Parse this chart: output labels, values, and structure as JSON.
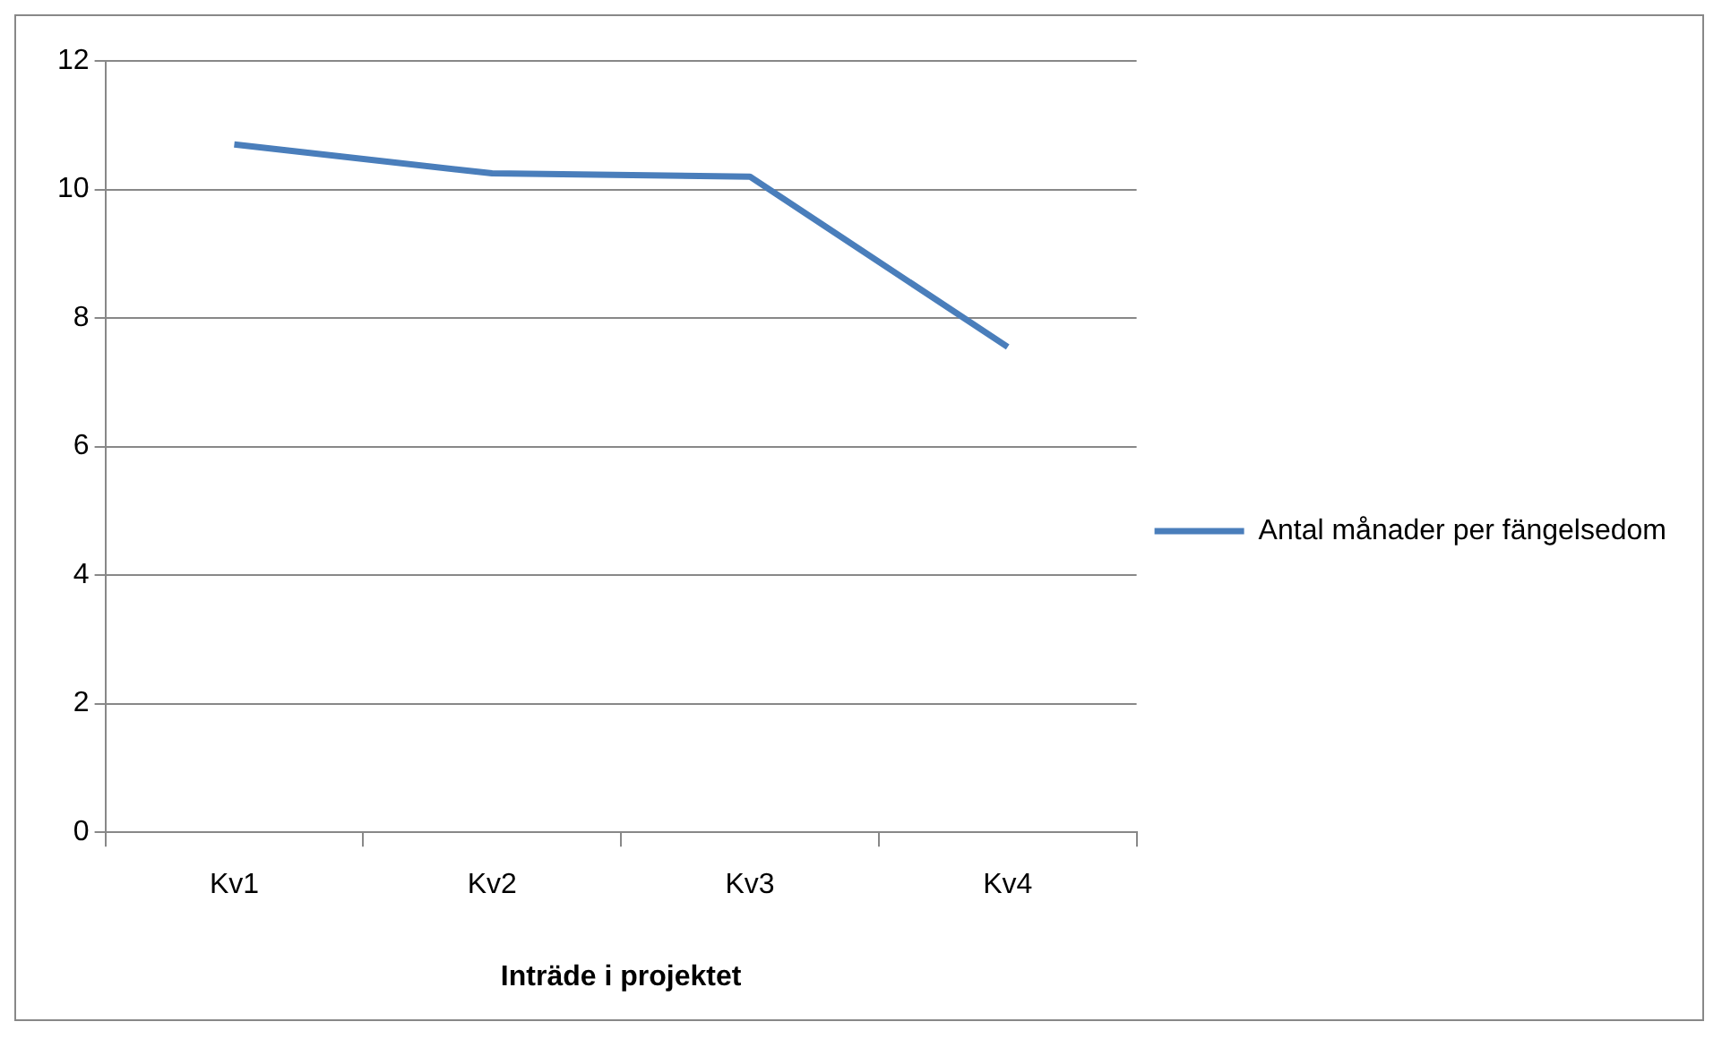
{
  "chart_data": {
    "type": "line",
    "xlabel": "Inträde i projektet",
    "categories": [
      "Kv1",
      "Kv2",
      "Kv3",
      "Kv4"
    ],
    "series": [
      {
        "name": "Antal månader per fängelsedom",
        "color": "#4a7ebb",
        "values": [
          10.7,
          10.25,
          10.2,
          7.55
        ]
      }
    ],
    "ylim": [
      0,
      12
    ],
    "yticks": [
      0,
      2,
      4,
      6,
      8,
      10,
      12
    ],
    "grid": "y",
    "legend": "right",
    "marker": "none"
  }
}
